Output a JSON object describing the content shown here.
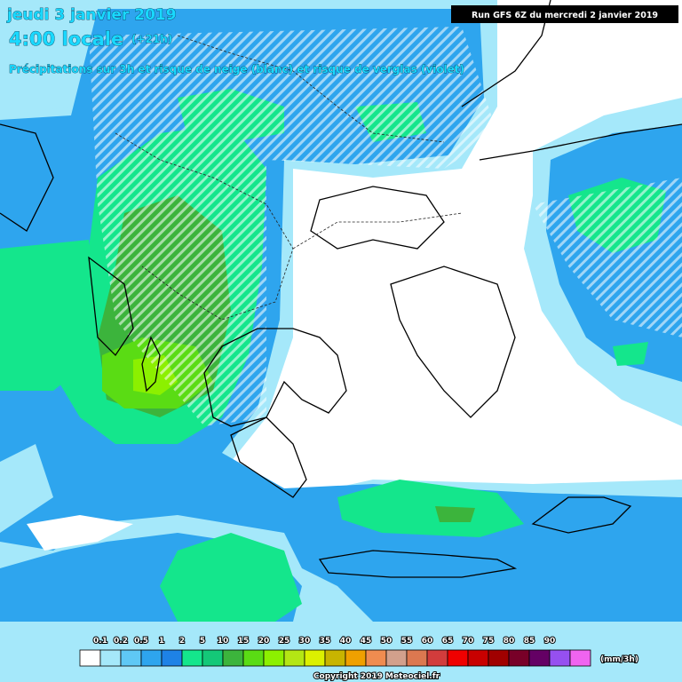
{
  "header": {
    "date": "jeudi 3 janvier 2019",
    "time": "4:00 locale",
    "lead": "(+21h)",
    "subtitle": "Précipitations sur 3h et risque de neige (blanc) et risque de verglas (violet)",
    "run": "Run GFS 6Z du mercredi 2 janvier 2019"
  },
  "legend": {
    "labels": [
      "0.1",
      "0.2",
      "0.5",
      "1",
      "2",
      "5",
      "10",
      "15",
      "20",
      "25",
      "30",
      "35",
      "40",
      "45",
      "50",
      "55",
      "60",
      "65",
      "70",
      "75",
      "80",
      "85",
      "90"
    ],
    "colors": [
      "#ffffff",
      "#a5e8fa",
      "#5fc8f5",
      "#2ea5ee",
      "#1e82e6",
      "#14e68c",
      "#14c878",
      "#3cb43c",
      "#5adc14",
      "#8cf000",
      "#b4e614",
      "#dcf000",
      "#c8b400",
      "#f0a000",
      "#f08c50",
      "#d2a08c",
      "#dc7850",
      "#d23c3c",
      "#f00000",
      "#c80000",
      "#a00000",
      "#780028",
      "#640064",
      "#9650f0",
      "#f064f0"
    ],
    "unit": "(mm/3h)"
  },
  "footer": {
    "copyright": "Copyright 2019 Meteociel.fr"
  }
}
